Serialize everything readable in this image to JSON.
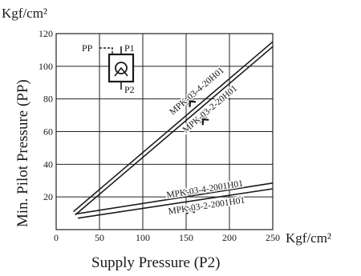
{
  "chart_data": {
    "type": "line",
    "y_unit": "Kgf/cm²",
    "x_unit": "Kgf/cm²",
    "xlabel": "Supply Pressure (P2)",
    "ylabel": "Min. Pilot Pressure (PP)",
    "xlim": [
      0,
      250
    ],
    "ylim": [
      0,
      120
    ],
    "x_ticks": [
      0,
      50,
      100,
      150,
      200,
      250
    ],
    "y_ticks": [
      20,
      40,
      60,
      80,
      100,
      120
    ],
    "grid": true,
    "series": [
      {
        "name": "MPK-03-4-20H01",
        "x": [
          20,
          250
        ],
        "y": [
          11,
          115
        ],
        "label_at": [
          150,
          77
        ]
      },
      {
        "name": "MPK-03-2-20H01",
        "x": [
          22,
          250
        ],
        "y": [
          9,
          112
        ],
        "label_at": [
          165,
          66
        ]
      },
      {
        "name": "MPK-03-4-2001H01",
        "x": [
          22,
          250
        ],
        "y": [
          9.5,
          28.5
        ],
        "label_at": [
          148,
          21
        ]
      },
      {
        "name": "MPK-03-2-2001H01",
        "x": [
          25,
          250
        ],
        "y": [
          7,
          25
        ],
        "label_at": [
          150,
          11
        ]
      }
    ],
    "symbol": {
      "labels": [
        "PP",
        "P1",
        "P2"
      ]
    }
  }
}
